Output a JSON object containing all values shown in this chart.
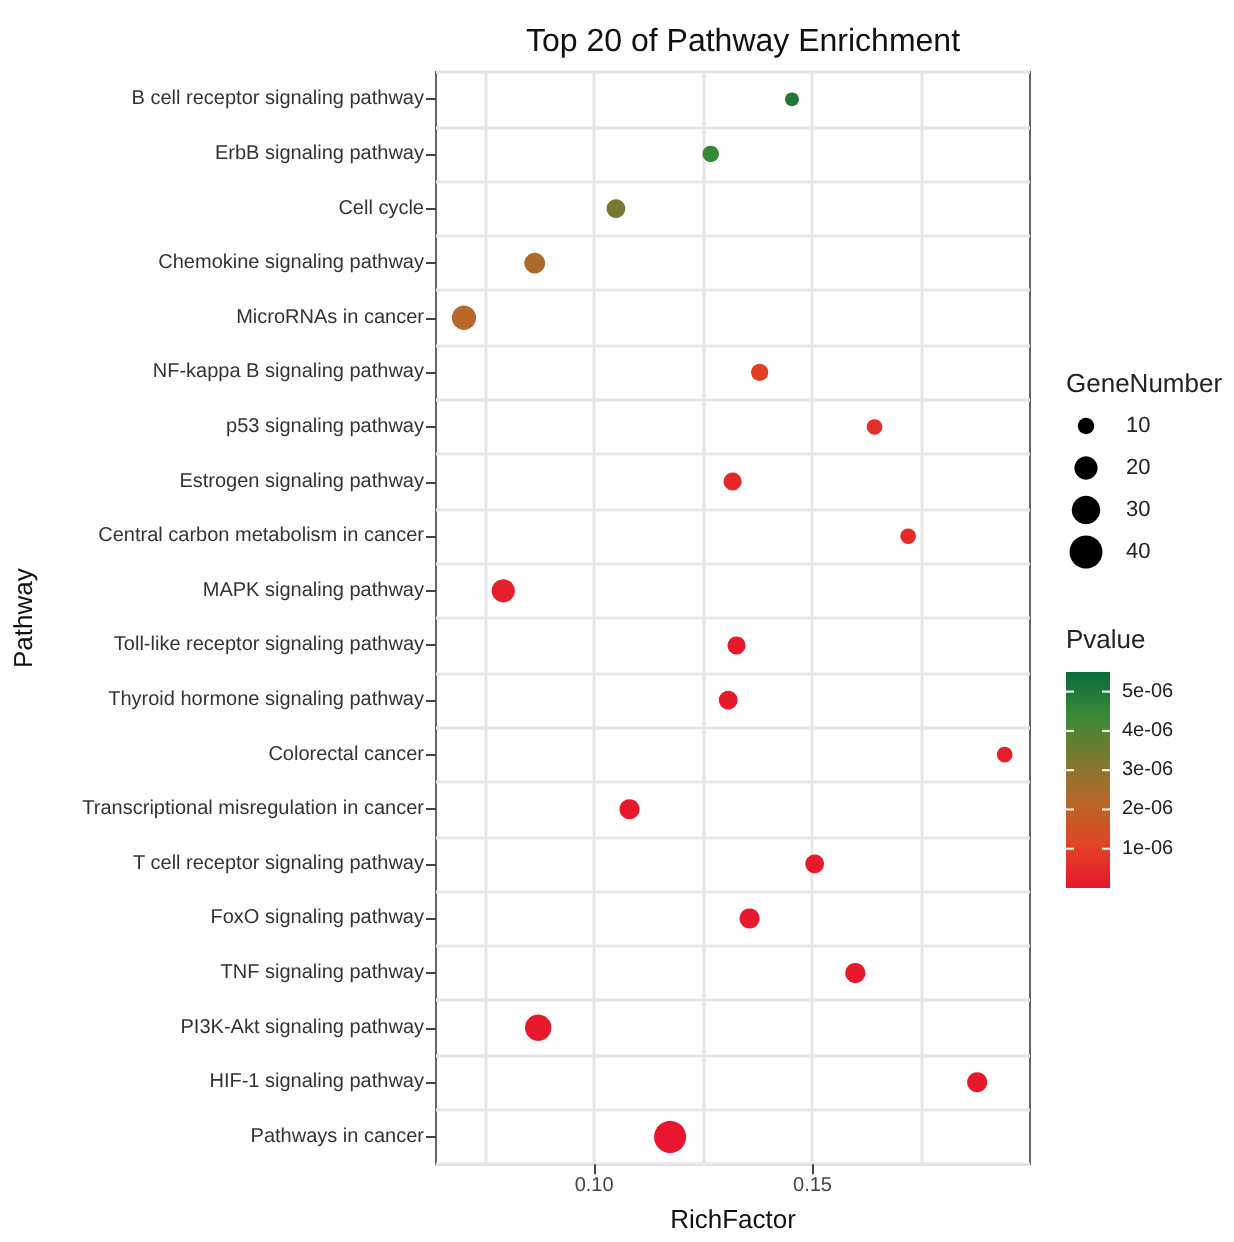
{
  "chart_data": {
    "type": "bubble",
    "title": "Top 20 of Pathway Enrichment",
    "xlabel": "RichFactor",
    "ylabel": "Pathway",
    "legend_title": "GeneNumber",
    "clabel": "Pvalue",
    "categories": [
      "B cell receptor signaling pathway",
      "ErbB signaling pathway",
      "Cell cycle",
      "Chemokine signaling pathway",
      "MicroRNAs in cancer",
      "NF-kappa B signaling pathway",
      "p53 signaling pathway",
      "Estrogen signaling pathway",
      "Central carbon metabolism in cancer",
      "MAPK signaling pathway",
      "Toll-like receptor signaling pathway",
      "Thyroid hormone signaling pathway",
      "Colorectal cancer",
      "Transcriptional misregulation in cancer",
      "T cell receptor signaling pathway",
      "FoxO signaling pathway",
      "TNF signaling pathway",
      "PI3K-Akt signaling pathway",
      "HIF-1 signaling pathway",
      "Pathways in cancer"
    ],
    "values": [
      0.1453,
      0.1267,
      0.105,
      0.0864,
      0.0702,
      0.1379,
      0.1642,
      0.1317,
      0.1719,
      0.0792,
      0.1326,
      0.1307,
      0.194,
      0.1081,
      0.1505,
      0.1356,
      0.1598,
      0.0872,
      0.1877,
      0.1174
    ],
    "sizes": [
      7,
      10,
      13,
      16,
      22,
      11,
      9,
      12,
      9,
      20,
      12,
      13,
      9,
      15,
      13,
      15,
      15,
      26,
      15,
      38
    ],
    "cvalues": [
      5e-06,
      4.5e-06,
      3.4e-06,
      2.4e-06,
      2.2e-06,
      1e-06,
      6e-07,
      4e-07,
      5e-07,
      2e-07,
      1e-07,
      1e-07,
      2e-07,
      1e-07,
      1e-07,
      1e-07,
      1e-07,
      1e-07,
      1e-07,
      0
    ],
    "size_legend": [
      10,
      20,
      30,
      40
    ],
    "xlim": [
      0.0638,
      0.1998
    ],
    "xticks": [
      {
        "value": 0.075,
        "label": null
      },
      {
        "value": 0.1,
        "label": "0.10"
      },
      {
        "value": 0.125,
        "label": null
      },
      {
        "value": 0.15,
        "label": "0.15"
      },
      {
        "value": 0.175,
        "label": null
      }
    ],
    "clim": [
      0,
      5.5e-06
    ],
    "cticks": [
      {
        "value": 1e-06,
        "label": "1e-06"
      },
      {
        "value": 2e-06,
        "label": "2e-06"
      },
      {
        "value": 3e-06,
        "label": "3e-06"
      },
      {
        "value": 4e-06,
        "label": "4e-06"
      },
      {
        "value": 5e-06,
        "label": "5e-06"
      }
    ],
    "grid": true,
    "orientation": "horizontal"
  }
}
